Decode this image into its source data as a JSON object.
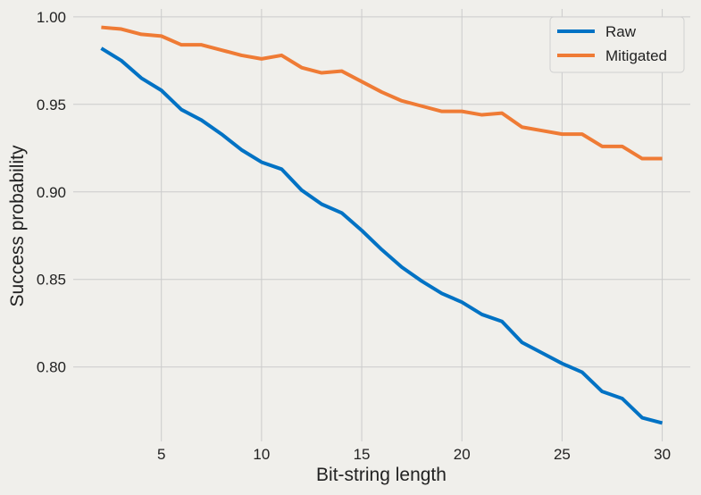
{
  "chart_data": {
    "type": "line",
    "title": "",
    "xlabel": "Bit-string length",
    "ylabel": "Success probability",
    "x": [
      2,
      3,
      4,
      5,
      6,
      7,
      8,
      9,
      10,
      11,
      12,
      13,
      14,
      15,
      16,
      17,
      18,
      19,
      20,
      21,
      22,
      23,
      24,
      25,
      26,
      27,
      28,
      29,
      30
    ],
    "series": [
      {
        "name": "Raw",
        "color": "#0072c4",
        "values": [
          0.982,
          0.975,
          0.965,
          0.958,
          0.947,
          0.941,
          0.933,
          0.924,
          0.917,
          0.913,
          0.901,
          0.893,
          0.888,
          0.878,
          0.867,
          0.857,
          0.849,
          0.842,
          0.837,
          0.83,
          0.826,
          0.814,
          0.808,
          0.802,
          0.797,
          0.786,
          0.782,
          0.771,
          0.768
        ]
      },
      {
        "name": "Mitigated",
        "color": "#ef7b35",
        "values": [
          0.994,
          0.993,
          0.99,
          0.989,
          0.984,
          0.984,
          0.981,
          0.978,
          0.976,
          0.978,
          0.971,
          0.968,
          0.969,
          0.963,
          0.957,
          0.952,
          0.949,
          0.946,
          0.946,
          0.944,
          0.945,
          0.937,
          0.935,
          0.933,
          0.933,
          0.926,
          0.926,
          0.919,
          0.919
        ]
      }
    ],
    "xlim": [
      0.6,
      31.4
    ],
    "ylim": [
      0.7575,
      1.0045
    ],
    "xticks": [
      5,
      10,
      15,
      20,
      25,
      30
    ],
    "xtick_labels": [
      "5",
      "10",
      "15",
      "20",
      "25",
      "30"
    ],
    "yticks": [
      0.8,
      0.85,
      0.9,
      0.95,
      1.0
    ],
    "ytick_labels": [
      "0.80",
      "0.85",
      "0.90",
      "0.95",
      "1.00"
    ],
    "grid": true,
    "legend_position": "top-right",
    "background_color": "#f0efeb",
    "grid_color": "#cbcbcb"
  }
}
